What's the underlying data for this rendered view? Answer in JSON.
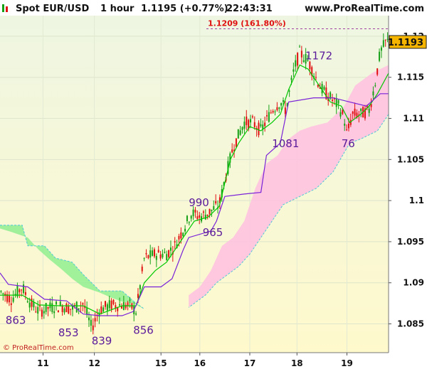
{
  "header": {
    "instrument": "Spot EUR/USD",
    "timeframe": "1 hour",
    "price_change": "1.1195 (+0.77%)",
    "time": "22:43:31",
    "site": "www.ProRealTime.com"
  },
  "copyright": "© ProRealTime.com",
  "colors": {
    "bull_candle": "#16a016",
    "bear_candle": "#e01010",
    "fast_ma": "#00c800",
    "slow_ma": "#7a22d8",
    "cloud_bull": "#90ee90",
    "cloud_bear": "#ffc0e0",
    "label": "#5a1a9a",
    "fib": "#e01010",
    "last_price_box": "#f4b400"
  },
  "chart_data": {
    "type": "candlestick",
    "ylim": [
      1.0815,
      1.1225
    ],
    "y_ticks": [
      {
        "value": 1.085,
        "label": "1.085"
      },
      {
        "value": 1.09,
        "label": "1.09"
      },
      {
        "value": 1.095,
        "label": "1.095"
      },
      {
        "value": 1.1,
        "label": "1.1"
      },
      {
        "value": 1.105,
        "label": "1.105"
      },
      {
        "value": 1.11,
        "label": "1.11"
      },
      {
        "value": 1.115,
        "label": "1.115"
      },
      {
        "value": 1.12,
        "label": "1.12"
      }
    ],
    "xlim": [
      0,
      140
    ],
    "x_ticks": [
      {
        "t": 15.5,
        "label": "11"
      },
      {
        "t": 34,
        "label": "12"
      },
      {
        "t": 58,
        "label": "15"
      },
      {
        "t": 72,
        "label": "16"
      },
      {
        "t": 90,
        "label": "17"
      },
      {
        "t": 107,
        "label": "18"
      },
      {
        "t": 125,
        "label": "19"
      }
    ],
    "price_path": [
      [
        0,
        1.089
      ],
      [
        4,
        1.088
      ],
      [
        8,
        1.0895
      ],
      [
        11,
        1.0875
      ],
      [
        14,
        1.0865
      ],
      [
        18,
        1.087
      ],
      [
        22,
        1.0872
      ],
      [
        26,
        1.0868
      ],
      [
        30,
        1.0875
      ],
      [
        33,
        1.0845
      ],
      [
        36,
        1.0868
      ],
      [
        40,
        1.0873
      ],
      [
        44,
        1.0873
      ],
      [
        47,
        1.0872
      ],
      [
        49,
        1.0865
      ],
      [
        50,
        1.0885
      ],
      [
        52,
        1.093
      ],
      [
        56,
        1.0935
      ],
      [
        60,
        1.0935
      ],
      [
        63,
        1.0945
      ],
      [
        66,
        1.0965
      ],
      [
        69,
        1.0985
      ],
      [
        72,
        1.098
      ],
      [
        75,
        1.0985
      ],
      [
        79,
        1.0995
      ],
      [
        81,
        1.1025
      ],
      [
        84,
        1.1065
      ],
      [
        88,
        1.1095
      ],
      [
        91,
        1.1095
      ],
      [
        94,
        1.1085
      ],
      [
        98,
        1.111
      ],
      [
        101,
        1.112
      ],
      [
        103,
        1.111
      ],
      [
        106,
        1.116
      ],
      [
        108,
        1.118
      ],
      [
        111,
        1.117
      ],
      [
        113,
        1.1155
      ],
      [
        116,
        1.1135
      ],
      [
        119,
        1.1125
      ],
      [
        122,
        1.1115
      ],
      [
        124,
        1.11
      ],
      [
        125,
        1.108
      ],
      [
        127,
        1.1105
      ],
      [
        130,
        1.1105
      ],
      [
        133,
        1.111
      ],
      [
        135,
        1.114
      ],
      [
        137,
        1.118
      ],
      [
        139,
        1.1193
      ]
    ],
    "fast_ma": [
      [
        0,
        1.0885
      ],
      [
        8,
        1.0885
      ],
      [
        14,
        1.0873
      ],
      [
        22,
        1.0872
      ],
      [
        30,
        1.0872
      ],
      [
        36,
        1.0862
      ],
      [
        44,
        1.0872
      ],
      [
        49,
        1.0872
      ],
      [
        52,
        1.09
      ],
      [
        56,
        1.0915
      ],
      [
        60,
        1.0925
      ],
      [
        66,
        1.0955
      ],
      [
        70,
        1.0975
      ],
      [
        75,
        1.098
      ],
      [
        79,
        1.0993
      ],
      [
        83,
        1.105
      ],
      [
        86,
        1.107
      ],
      [
        90,
        1.109
      ],
      [
        94,
        1.1085
      ],
      [
        98,
        1.1095
      ],
      [
        101,
        1.1105
      ],
      [
        104,
        1.1135
      ],
      [
        108,
        1.1165
      ],
      [
        111,
        1.116
      ],
      [
        115,
        1.114
      ],
      [
        119,
        1.112
      ],
      [
        123,
        1.1115
      ],
      [
        126,
        1.1095
      ],
      [
        130,
        1.1105
      ],
      [
        133,
        1.1115
      ],
      [
        136,
        1.113
      ],
      [
        140,
        1.1155
      ]
    ],
    "slow_ma": [
      [
        0,
        1.0912
      ],
      [
        3,
        1.0898
      ],
      [
        10,
        1.0895
      ],
      [
        16,
        1.088
      ],
      [
        24,
        1.0878
      ],
      [
        30,
        1.0862
      ],
      [
        36,
        1.086
      ],
      [
        44,
        1.086
      ],
      [
        48,
        1.0865
      ],
      [
        52,
        1.0895
      ],
      [
        58,
        1.0895
      ],
      [
        62,
        1.0905
      ],
      [
        66,
        1.094
      ],
      [
        68,
        1.0955
      ],
      [
        76,
        1.0963
      ],
      [
        78,
        1.0975
      ],
      [
        81,
        1.1005
      ],
      [
        88,
        1.1008
      ],
      [
        94,
        1.101
      ],
      [
        96,
        1.1055
      ],
      [
        101,
        1.107
      ],
      [
        104,
        1.112
      ],
      [
        113,
        1.1125
      ],
      [
        120,
        1.1125
      ],
      [
        126,
        1.112
      ],
      [
        132,
        1.1115
      ],
      [
        137,
        1.113
      ],
      [
        140,
        1.113
      ]
    ],
    "cloud_bull": {
      "upper": [
        [
          0,
          1.097
        ],
        [
          8,
          1.097
        ],
        [
          10,
          1.0945
        ],
        [
          16,
          1.0945
        ],
        [
          20,
          1.093
        ],
        [
          26,
          1.0925
        ],
        [
          30,
          1.091
        ],
        [
          36,
          1.089
        ],
        [
          44,
          1.089
        ],
        [
          48,
          1.0878
        ],
        [
          52,
          1.0868
        ]
      ],
      "lower": [
        [
          52,
          1.0868
        ],
        [
          48,
          1.0875
        ],
        [
          44,
          1.0877
        ],
        [
          40,
          1.0882
        ],
        [
          36,
          1.0888
        ],
        [
          30,
          1.0895
        ],
        [
          26,
          1.0905
        ],
        [
          22,
          1.0917
        ],
        [
          18,
          1.0928
        ],
        [
          14,
          1.094
        ],
        [
          10,
          1.0955
        ],
        [
          4,
          1.0962
        ],
        [
          0,
          1.0966
        ]
      ]
    },
    "cloud_bear": {
      "upper": [
        [
          68,
          1.0885
        ],
        [
          72,
          1.0895
        ],
        [
          76,
          1.0915
        ],
        [
          80,
          1.0945
        ],
        [
          84,
          1.0955
        ],
        [
          88,
          1.0975
        ],
        [
          92,
          1.1015
        ],
        [
          96,
          1.1045
        ],
        [
          100,
          1.1055
        ],
        [
          104,
          1.1075
        ],
        [
          108,
          1.1085
        ],
        [
          112,
          1.109
        ],
        [
          118,
          1.1095
        ],
        [
          124,
          1.1115
        ],
        [
          128,
          1.114
        ],
        [
          134,
          1.1155
        ],
        [
          140,
          1.1165
        ]
      ],
      "lower": [
        [
          140,
          1.1105
        ],
        [
          136,
          1.1085
        ],
        [
          130,
          1.1075
        ],
        [
          126,
          1.107
        ],
        [
          120,
          1.1035
        ],
        [
          114,
          1.1015
        ],
        [
          108,
          1.1005
        ],
        [
          102,
          1.0995
        ],
        [
          98,
          1.0975
        ],
        [
          94,
          1.0955
        ],
        [
          90,
          1.0935
        ],
        [
          86,
          1.092
        ],
        [
          82,
          1.091
        ],
        [
          78,
          1.09
        ],
        [
          74,
          1.0885
        ],
        [
          70,
          1.0875
        ],
        [
          68,
          1.087
        ]
      ]
    },
    "fib_level": {
      "value": 1.1209,
      "label": "1.1209 (161.80%)"
    },
    "last_price": {
      "value": 1.1193,
      "label": "1.1193"
    },
    "annotations": [
      {
        "t": 2,
        "y": 1.085,
        "text": "863"
      },
      {
        "t": 21,
        "y": 1.0835,
        "text": "853"
      },
      {
        "t": 33,
        "y": 1.0825,
        "text": "839"
      },
      {
        "t": 48,
        "y": 1.0838,
        "text": "856"
      },
      {
        "t": 68,
        "y": 1.0993,
        "text": "990"
      },
      {
        "t": 73,
        "y": 1.0957,
        "text": "965"
      },
      {
        "t": 98,
        "y": 1.1065,
        "text": "1081"
      },
      {
        "t": 110,
        "y": 1.1172,
        "text": "1172"
      },
      {
        "t": 123,
        "y": 1.1065,
        "text": "76"
      }
    ]
  }
}
